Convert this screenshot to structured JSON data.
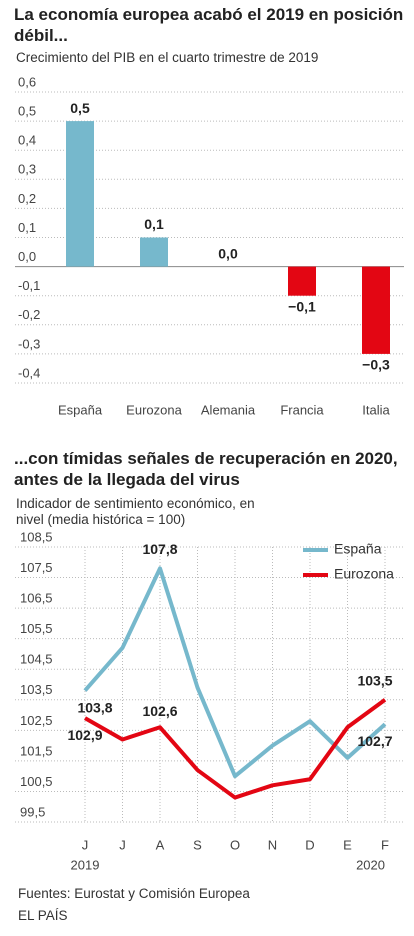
{
  "chart_data": [
    {
      "type": "bar",
      "title": "La economía europea acabó el 2019 en posición débil...",
      "subtitle": "Crecimiento del PIB en el cuarto trimestre de 2019",
      "categories": [
        "España",
        "Eurozona",
        "Alemania",
        "Francia",
        "Italia"
      ],
      "values": [
        0.5,
        0.1,
        0.0,
        -0.1,
        -0.3
      ],
      "value_labels": [
        "0,5",
        "0,1",
        "0,0",
        "−0,1",
        "−0,3"
      ],
      "colors": [
        "#76b8cc",
        "#76b8cc",
        "#76b8cc",
        "#e30613",
        "#e30613"
      ],
      "ylim": [
        -0.4,
        0.6
      ],
      "yticks": [
        {
          "value": 0.6,
          "label": "0,6"
        },
        {
          "value": 0.5,
          "label": "0,5"
        },
        {
          "value": 0.4,
          "label": "0,4"
        },
        {
          "value": 0.3,
          "label": "0,3"
        },
        {
          "value": 0.2,
          "label": "0,2"
        },
        {
          "value": 0.1,
          "label": "0,1"
        },
        {
          "value": 0.0,
          "label": "0,0"
        },
        {
          "value": -0.1,
          "label": "-0,1"
        },
        {
          "value": -0.2,
          "label": "-0,2"
        },
        {
          "value": -0.3,
          "label": "-0,3"
        },
        {
          "value": -0.4,
          "label": "-0,4"
        }
      ],
      "grid": true
    },
    {
      "type": "line",
      "title": "...con tímidas señales de recuperación en 2020, antes de la llegada del virus",
      "subtitle": "Indicador de sentimiento económico, en nivel (media histórica = 100)",
      "categories": [
        "J",
        "J",
        "A",
        "S",
        "O",
        "N",
        "D",
        "E",
        "F"
      ],
      "x_sublabels": [
        "2019",
        null,
        null,
        null,
        null,
        null,
        null,
        null,
        "2020"
      ],
      "series": [
        {
          "name": "España",
          "color": "#76b8cc",
          "values": [
            103.8,
            105.2,
            107.8,
            103.9,
            101.0,
            102.0,
            102.8,
            101.6,
            102.7
          ],
          "value_labels": [
            "103,8",
            null,
            "107,8",
            null,
            null,
            null,
            null,
            null,
            "102,7"
          ]
        },
        {
          "name": "Eurozona",
          "color": "#e30613",
          "values": [
            102.9,
            102.2,
            102.6,
            101.2,
            100.3,
            100.7,
            100.9,
            102.6,
            103.5
          ],
          "value_labels": [
            "102,9",
            null,
            "102,6",
            null,
            null,
            null,
            null,
            null,
            "103,5"
          ]
        }
      ],
      "ylim": [
        99.5,
        108.5
      ],
      "yticks": [
        {
          "value": 108.5,
          "label": "108,5"
        },
        {
          "value": 107.5,
          "label": "107,5"
        },
        {
          "value": 106.5,
          "label": "106,5"
        },
        {
          "value": 105.5,
          "label": "105,5"
        },
        {
          "value": 104.5,
          "label": "104,5"
        },
        {
          "value": 103.5,
          "label": "103,5"
        },
        {
          "value": 102.5,
          "label": "102,5"
        },
        {
          "value": 101.5,
          "label": "101,5"
        },
        {
          "value": 100.5,
          "label": "100,5"
        },
        {
          "value": 99.5,
          "label": "99,5"
        }
      ],
      "grid": true,
      "legend": "top-right"
    }
  ],
  "source": "Fuentes: Eurostat y Comisión Europea",
  "credit": "EL PAÍS"
}
